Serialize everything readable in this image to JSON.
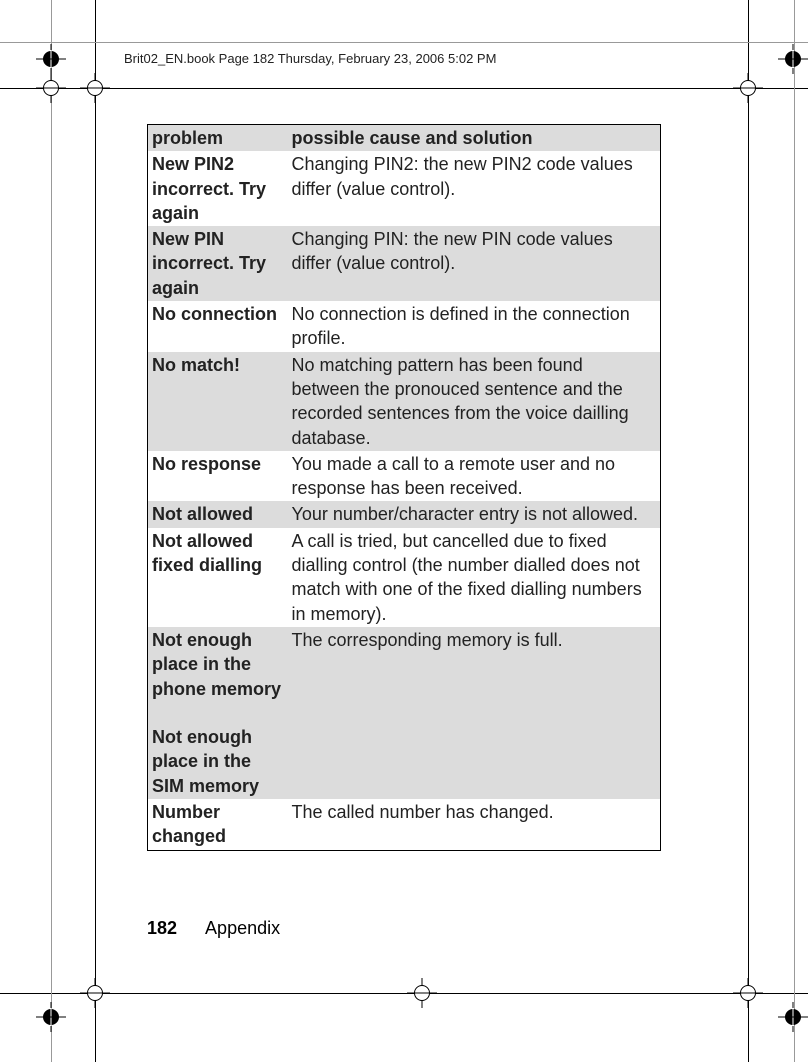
{
  "header_text": "Brit02_EN.book  Page 182  Thursday, February 23, 2006  5:02 PM",
  "table": {
    "col1_header": "problem",
    "col2_header": "possible cause and solution",
    "rows": [
      {
        "problem": "New PIN2 incorrect. Try again",
        "solution": "Changing PIN2: the new PIN2 code values differ (value control).",
        "shaded": false
      },
      {
        "problem": "New PIN incorrect. Try again",
        "solution": "Changing PIN: the new PIN code values differ (value control).",
        "shaded": true
      },
      {
        "problem": "No connection",
        "solution": "No connection is defined in the connection profile.",
        "shaded": false
      },
      {
        "problem": "No match!",
        "solution": "No matching pattern has been found between the pronouced sentence and the recorded sentences from the voice dailling database.",
        "shaded": true
      },
      {
        "problem": "No response",
        "solution": "You made a call to a remote user and no response has been received.",
        "shaded": false
      },
      {
        "problem": "Not allowed",
        "solution": "Your number/character entry is not allowed.",
        "shaded": true
      },
      {
        "problem": "Not allowed fixed dialling",
        "solution": "A call is tried, but cancelled due to fixed dialling control (the number dialled does not match with one of the fixed dialling numbers in memory).",
        "shaded": false
      },
      {
        "problem": "Not enough place in the phone memory\n\nNot enough place in the SIM memory",
        "solution": "The corresponding memory is full.",
        "shaded": true
      },
      {
        "problem": "Number changed",
        "solution": "The called number has changed.",
        "shaded": false
      }
    ]
  },
  "footer": {
    "page_number": "182",
    "section": "Appendix"
  }
}
